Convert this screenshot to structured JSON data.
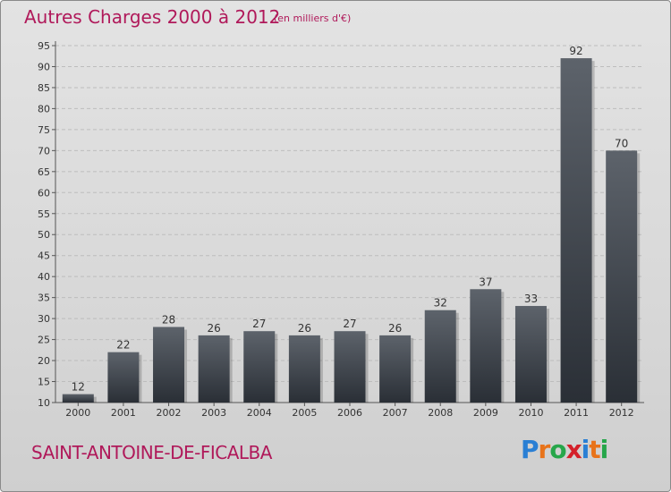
{
  "header": {
    "title": "Autres Charges 2000 à 2012",
    "subtitle": "(en milliers d'€)"
  },
  "footer": {
    "commune": "SAINT-ANTOINE-DE-FICALBA",
    "logo": {
      "letters": [
        "P",
        "r",
        "o",
        "x",
        "i",
        "t",
        "i"
      ],
      "colors": [
        "#2a7fd4",
        "#e8731a",
        "#27a64a",
        "#d4202a",
        "#2a7fd4",
        "#e8731a",
        "#27a64a"
      ]
    }
  },
  "colors": {
    "title": "#b0195a",
    "bar_top": "#5d636b",
    "bar_bottom": "#2a2f36"
  },
  "chart_data": {
    "type": "bar",
    "title": "Autres Charges 2000 à 2012",
    "categories": [
      "2000",
      "2001",
      "2002",
      "2003",
      "2004",
      "2005",
      "2006",
      "2007",
      "2008",
      "2009",
      "2010",
      "2011",
      "2012"
    ],
    "values": [
      12,
      22,
      28,
      26,
      27,
      26,
      27,
      26,
      32,
      37,
      33,
      92,
      70
    ],
    "ylim": [
      10,
      95
    ],
    "yticks": [
      10,
      15,
      20,
      25,
      30,
      35,
      40,
      45,
      50,
      55,
      60,
      65,
      70,
      75,
      80,
      85,
      90,
      95
    ],
    "grid": true
  }
}
